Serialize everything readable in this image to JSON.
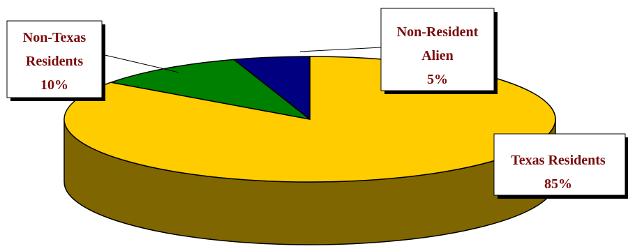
{
  "chart_data": {
    "type": "pie",
    "style": "3d",
    "slices": [
      {
        "key": "texas",
        "label_lines": [
          "Texas Residents",
          "85%"
        ],
        "value": 85,
        "color": "#FFCC00",
        "side_color": "#806600"
      },
      {
        "key": "nontexas",
        "label_lines": [
          "Non-Texas",
          "Residents",
          "10%"
        ],
        "value": 10,
        "color": "#008000",
        "side_color": "#004000"
      },
      {
        "key": "alien",
        "label_lines": [
          "Non-Resident",
          "Alien",
          "5%"
        ],
        "value": 5,
        "color": "#000080",
        "side_color": "#000040"
      }
    ],
    "label_color": "#7A0B0B",
    "legend": "none"
  }
}
